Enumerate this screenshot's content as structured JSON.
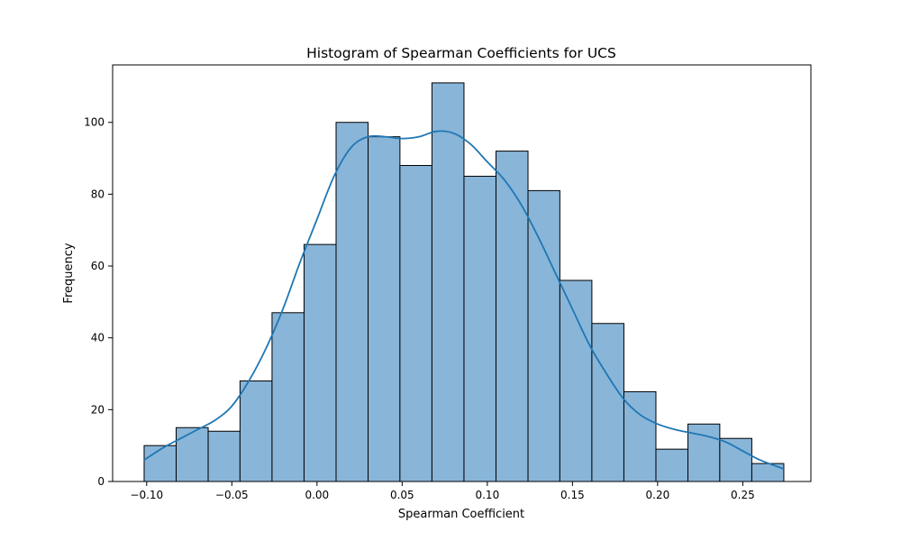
{
  "chart_data": {
    "type": "bar",
    "subtype": "histogram-with-kde",
    "title": "Histogram of Spearman Coefficients for UCS",
    "xlabel": "Spearman Coefficient",
    "ylabel": "Frequency",
    "xlim": [
      -0.12,
      0.29
    ],
    "ylim": [
      0,
      116
    ],
    "grid": false,
    "x_ticks": [
      {
        "value": -0.1,
        "label": "−0.10"
      },
      {
        "value": -0.05,
        "label": "−0.05"
      },
      {
        "value": 0.0,
        "label": "0.00"
      },
      {
        "value": 0.05,
        "label": "0.05"
      },
      {
        "value": 0.1,
        "label": "0.10"
      },
      {
        "value": 0.15,
        "label": "0.15"
      },
      {
        "value": 0.2,
        "label": "0.20"
      },
      {
        "value": 0.25,
        "label": "0.25"
      }
    ],
    "y_ticks": [
      {
        "value": 0,
        "label": "0"
      },
      {
        "value": 20,
        "label": "20"
      },
      {
        "value": 40,
        "label": "40"
      },
      {
        "value": 60,
        "label": "60"
      },
      {
        "value": 80,
        "label": "80"
      },
      {
        "value": 100,
        "label": "100"
      }
    ],
    "bin_edges": [
      -0.1015,
      -0.0827,
      -0.0639,
      -0.0452,
      -0.0264,
      -0.0076,
      0.0112,
      0.03,
      0.0487,
      0.0675,
      0.0863,
      0.1051,
      0.1239,
      0.1426,
      0.1614,
      0.1802,
      0.199,
      0.2178,
      0.2365,
      0.2553,
      0.2741
    ],
    "values": [
      10,
      15,
      14,
      28,
      47,
      66,
      100,
      96,
      88,
      111,
      85,
      92,
      81,
      56,
      44,
      25,
      9,
      16,
      12,
      5
    ],
    "kde": {
      "x": [
        -0.1015,
        -0.09,
        -0.08,
        -0.07,
        -0.06,
        -0.05,
        -0.04,
        -0.03,
        -0.02,
        -0.01,
        0.0,
        0.01,
        0.02,
        0.03,
        0.04,
        0.05,
        0.06,
        0.07,
        0.08,
        0.09,
        0.1,
        0.11,
        0.12,
        0.13,
        0.14,
        0.15,
        0.16,
        0.17,
        0.18,
        0.19,
        0.2,
        0.21,
        0.22,
        0.23,
        0.24,
        0.25,
        0.26,
        0.2741
      ],
      "y": [
        6,
        9.5,
        12,
        14.5,
        17,
        21,
        28,
        37,
        48,
        61,
        73,
        85,
        93,
        96,
        96,
        95.5,
        96,
        97.5,
        97,
        94,
        89,
        84,
        77,
        68,
        58,
        48,
        38,
        30,
        23,
        18.5,
        16,
        14.5,
        13.5,
        12.5,
        11,
        8.5,
        6,
        3.5
      ]
    },
    "colors": {
      "bar_fill": "#89b5d9",
      "bar_edge": "#000000",
      "kde_line": "#1f77b4"
    }
  }
}
